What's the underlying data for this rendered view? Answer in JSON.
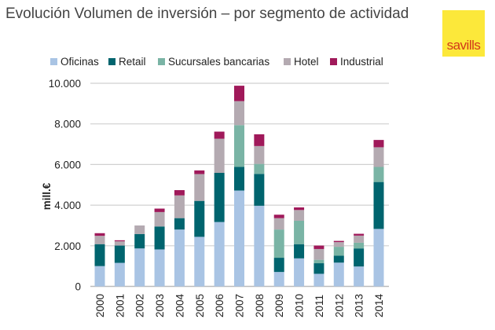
{
  "title": "Evolución Volumen de inversión – por segmento de actividad",
  "logo_text": "savills",
  "chart_data": {
    "type": "bar",
    "stacked": true,
    "title": "Evolución Volumen de inversión – por segmento de actividad",
    "xlabel": "",
    "ylabel": "mill.€",
    "ylim": [
      0,
      10000
    ],
    "yticks": [
      "0",
      "2.000",
      "4.000",
      "6.000",
      "8.000",
      "10.000"
    ],
    "ytick_values": [
      0,
      2000,
      4000,
      6000,
      8000,
      10000
    ],
    "grid": true,
    "legend_position": "top",
    "categories": [
      "2000",
      "2001",
      "2002",
      "2003",
      "2004",
      "2005",
      "2006",
      "2007",
      "2008",
      "2009",
      "2010",
      "2011",
      "2012",
      "2013",
      "2014"
    ],
    "series": [
      {
        "name": "Oficinas",
        "color": "#a9c4e4",
        "values": [
          1000,
          1160,
          1870,
          1820,
          2800,
          2440,
          3170,
          4720,
          3970,
          710,
          1380,
          620,
          1170,
          980,
          2830
        ]
      },
      {
        "name": "Retail",
        "color": "#00646e",
        "values": [
          1080,
          850,
          710,
          1130,
          560,
          1770,
          2420,
          1160,
          1570,
          700,
          700,
          520,
          340,
          890,
          2310
        ]
      },
      {
        "name": "Sucursales bancarias",
        "color": "#7ab4a5",
        "values": [
          0,
          0,
          0,
          0,
          0,
          0,
          0,
          2060,
          490,
          1390,
          1150,
          170,
          440,
          280,
          740
        ]
      },
      {
        "name": "Hotel",
        "color": "#b4aab1",
        "values": [
          410,
          210,
          420,
          710,
          1120,
          1320,
          1680,
          1180,
          880,
          560,
          530,
          530,
          230,
          350,
          970
        ]
      },
      {
        "name": "Industrial",
        "color": "#a0195a",
        "values": [
          130,
          50,
          0,
          170,
          260,
          180,
          350,
          760,
          580,
          170,
          130,
          170,
          60,
          90,
          360
        ]
      }
    ]
  }
}
